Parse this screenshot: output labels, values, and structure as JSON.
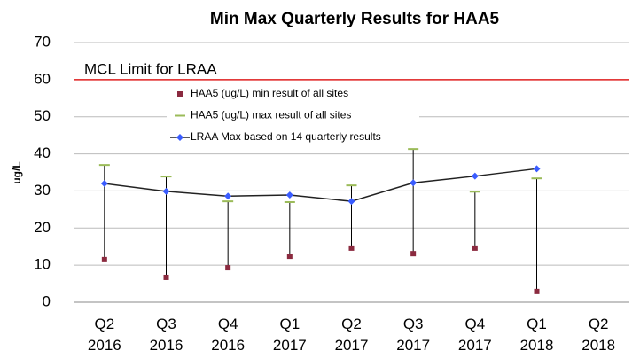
{
  "chart_data": {
    "type": "line",
    "title": "Min Max Quarterly Results for HAA5",
    "y_label": "ug/L",
    "categories": [
      "Q2 2016",
      "Q3 2016",
      "Q4 2016",
      "Q1 2017",
      "Q2 2017",
      "Q3 2017",
      "Q4 2017",
      "Q1 2018",
      "Q2 2018"
    ],
    "series": [
      {
        "name": "HAA5 (ug/L) min result of all sites",
        "color": "#8b2a3f",
        "marker": "square",
        "values": [
          11.5,
          6.7,
          9.3,
          12.4,
          14.6,
          13.1,
          14.6,
          2.9,
          null
        ]
      },
      {
        "name": "HAA5 (ug/L) max result of all sites",
        "color": "#9bbb59",
        "marker": "dash",
        "values": [
          37,
          33.9,
          27.2,
          27,
          31.5,
          41.3,
          29.8,
          33.4,
          null
        ]
      },
      {
        "name": "LRAA Max based on 14 quarterly results",
        "color": "#222222",
        "marker": "diamond",
        "marker_color": "#3a5cff",
        "line": true,
        "values": [
          32,
          29.9,
          28.6,
          28.9,
          27.2,
          32.2,
          34,
          36,
          null
        ]
      }
    ],
    "high_low_lines": true,
    "reference_line": {
      "label": "MCL Limit for LRAA",
      "value": 60,
      "color": "#e02020"
    },
    "ylim": [
      0,
      70
    ],
    "yticks": [
      0,
      10,
      20,
      30,
      40,
      50,
      60,
      70
    ],
    "grid": true
  }
}
